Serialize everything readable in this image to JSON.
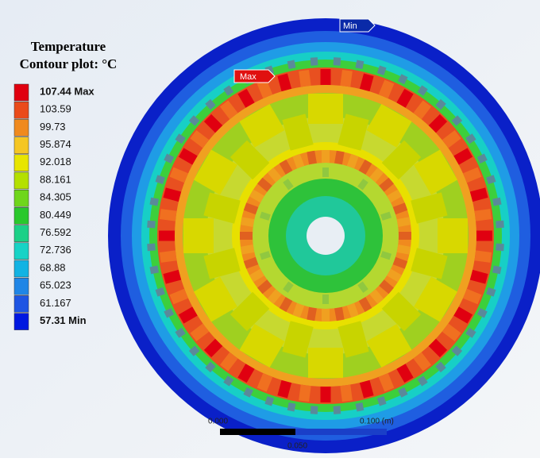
{
  "legend": {
    "title": [
      "Temperature",
      "Contour plot: °C"
    ],
    "entries": [
      {
        "label": "107.44 Max",
        "color": "#e0000f"
      },
      {
        "label": "103.59",
        "color": "#ea4b1a"
      },
      {
        "label": "99.73",
        "color": "#f08a1e"
      },
      {
        "label": "95.874",
        "color": "#f5c623"
      },
      {
        "label": "92.018",
        "color": "#e8e500"
      },
      {
        "label": "88.161",
        "color": "#b4e000"
      },
      {
        "label": "84.305",
        "color": "#6fd61b"
      },
      {
        "label": "80.449",
        "color": "#29c82c"
      },
      {
        "label": "76.592",
        "color": "#1bd087"
      },
      {
        "label": "72.736",
        "color": "#17d3c6"
      },
      {
        "label": "68.88",
        "color": "#12b3e3"
      },
      {
        "label": "65.023",
        "color": "#1f86e6"
      },
      {
        "label": "61.167",
        "color": "#1e55e3"
      },
      {
        "label": "57.31 Min",
        "color": "#0018e0"
      }
    ]
  },
  "markers": {
    "max": "Max",
    "min": "Min"
  },
  "scale_bar": {
    "labels": [
      "0.000",
      "0.050",
      "0.100 (m)"
    ]
  }
}
